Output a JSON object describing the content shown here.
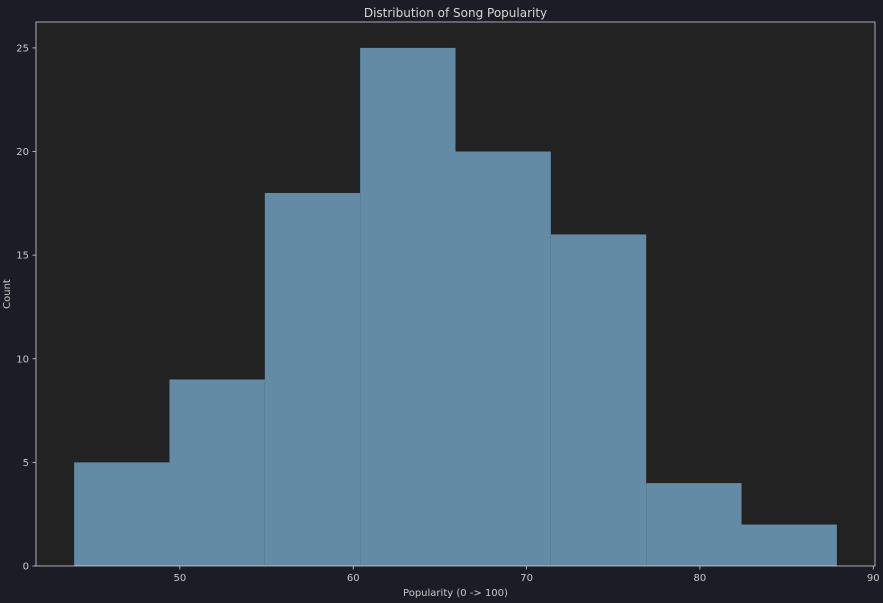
{
  "chart_data": {
    "type": "bar",
    "subtype": "histogram",
    "title": "Distribution of Song Popularity",
    "xlabel": "Popularity (0 -> 100)",
    "ylabel": "Count",
    "bin_edges": [
      43.9,
      49.4,
      54.9,
      60.4,
      65.9,
      71.4,
      76.9,
      82.4,
      87.9
    ],
    "counts": [
      5,
      9,
      18,
      25,
      20,
      16,
      4,
      2
    ],
    "xlim": [
      41.7,
      90.1
    ],
    "ylim": [
      0,
      26.25
    ],
    "xticks": [
      50,
      60,
      70,
      80,
      90
    ],
    "yticks": [
      0,
      5,
      10,
      15,
      20,
      25
    ],
    "grid": false,
    "legend": "none",
    "colors": {
      "bar": "#648ba6",
      "plot_background": "#222222",
      "figure_background": "#1c1c26",
      "spine": "#cfcfcf",
      "text": "#c8c8c8"
    }
  }
}
